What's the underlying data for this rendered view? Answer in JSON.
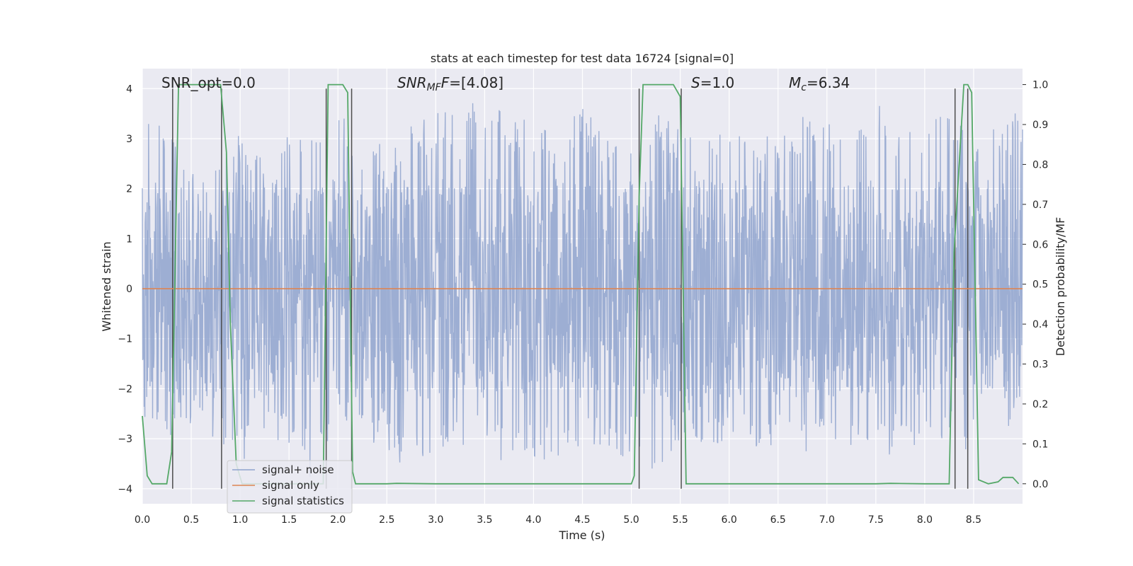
{
  "chart_data": {
    "type": "line",
    "title": "stats at each timestep for test data 16724 [signal=0]",
    "xlabel": "Time (s)",
    "ylabel": "Whitened strain",
    "ylabel_right": "Detection probability/MF",
    "xlim": [
      0.0,
      9.0
    ],
    "ylim": [
      -4.3,
      4.4
    ],
    "ylim_right": [
      -0.05,
      1.04
    ],
    "x_ticks": [
      "0.0",
      "0.5",
      "1.0",
      "1.5",
      "2.0",
      "2.5",
      "3.0",
      "3.5",
      "4.0",
      "4.5",
      "5.0",
      "5.5",
      "6.0",
      "6.5",
      "7.0",
      "7.5",
      "8.0",
      "8.5"
    ],
    "y_ticks": [
      "4",
      "3",
      "2",
      "1",
      "0",
      "−1",
      "−2",
      "−3",
      "−4"
    ],
    "y_right_ticks": [
      "1.0",
      "0.9",
      "0.8",
      "0.7",
      "0.6",
      "0.5",
      "0.4",
      "0.3",
      "0.2",
      "0.1",
      "0.0"
    ],
    "grid": true,
    "legend_position": "lower-left",
    "annotations": {
      "snr_opt": "SNR_opt=0.0",
      "snr_mf_main": "SNR",
      "snr_mf_sub": "MF",
      "snr_mf_value": "=[4.08]",
      "s_var": "S",
      "s_value": "=1.0",
      "mc_var": "M",
      "mc_sub": "c",
      "mc_value": "=6.34"
    },
    "series": [
      {
        "name": "signal+ noise",
        "color": "#8fa3ce",
        "axis": "left",
        "envelope_x": [
          0.0,
          0.25,
          0.5,
          0.75,
          1.0,
          1.25,
          1.5,
          1.75,
          2.0,
          2.25,
          2.5,
          2.75,
          3.0,
          3.25,
          3.5,
          3.75,
          4.0,
          4.25,
          4.5,
          4.75,
          5.0,
          5.25,
          5.5,
          5.75,
          6.0,
          6.25,
          6.5,
          6.75,
          7.0,
          7.25,
          7.5,
          7.75,
          8.0,
          8.25,
          8.5,
          8.75,
          9.0
        ],
        "envelope_upper": [
          3.3,
          3.6,
          2.8,
          3.0,
          3.1,
          2.9,
          3.1,
          3.2,
          3.7,
          2.8,
          3.0,
          3.3,
          3.7,
          3.4,
          4.0,
          3.3,
          3.5,
          3.3,
          3.6,
          3.2,
          3.5,
          3.6,
          3.2,
          2.9,
          3.3,
          2.9,
          3.2,
          3.5,
          3.5,
          3.1,
          3.8,
          3.1,
          3.4,
          3.5,
          3.3,
          3.5,
          3.6
        ],
        "envelope_lower": [
          -2.6,
          -3.1,
          -2.9,
          -3.0,
          -3.5,
          -3.1,
          -3.2,
          -3.9,
          -2.6,
          -3.0,
          -3.2,
          -3.9,
          -3.1,
          -3.3,
          -3.1,
          -3.8,
          -3.4,
          -3.6,
          -3.1,
          -3.5,
          -3.3,
          -3.8,
          -3.0,
          -3.1,
          -3.1,
          -3.4,
          -3.2,
          -3.3,
          -3.3,
          -3.2,
          -3.5,
          -3.2,
          -3.2,
          -3.1,
          -3.3,
          -3.2,
          -3.1
        ]
      },
      {
        "name": "signal only",
        "color": "#dd8452",
        "axis": "left",
        "x": [
          0.0,
          9.0
        ],
        "y": [
          0.0,
          0.0
        ]
      },
      {
        "name": "signal statistics",
        "color": "#55a868",
        "axis": "right",
        "x": [
          0.0,
          0.05,
          0.1,
          0.25,
          0.3,
          0.37,
          0.4,
          0.5,
          0.6,
          0.7,
          0.8,
          0.86,
          0.9,
          0.96,
          1.02,
          1.2,
          1.85,
          1.9,
          1.95,
          2.05,
          2.1,
          2.15,
          2.18,
          2.22,
          2.3,
          2.5,
          2.6,
          3.0,
          4.0,
          5.0,
          5.03,
          5.08,
          5.12,
          5.2,
          5.3,
          5.43,
          5.5,
          5.56,
          5.65,
          6.0,
          7.0,
          7.5,
          7.65,
          8.0,
          8.25,
          8.3,
          8.4,
          8.44,
          8.48,
          8.55,
          8.65,
          8.75,
          8.8,
          8.9,
          8.96
        ],
        "y": [
          0.17,
          0.02,
          0.0,
          0.0,
          0.08,
          1.0,
          1.0,
          1.0,
          1.0,
          1.0,
          1.0,
          0.83,
          0.4,
          0.05,
          0.0,
          0.0,
          0.0,
          1.0,
          1.0,
          1.0,
          0.98,
          0.03,
          0.0,
          0.0,
          0.0,
          0.0,
          0.001,
          0.0,
          0.0,
          0.0,
          0.02,
          0.72,
          1.0,
          1.0,
          1.0,
          1.0,
          0.97,
          0.0,
          0.0,
          0.0,
          0.0,
          0.0,
          0.001,
          0.0,
          0.0,
          0.58,
          1.0,
          1.0,
          0.98,
          0.01,
          0.0,
          0.005,
          0.016,
          0.016,
          0.0
        ]
      }
    ],
    "vertical_lines_x": [
      0.31,
      0.81,
      1.88,
      2.14,
      5.08,
      5.51,
      8.31,
      8.44
    ]
  }
}
